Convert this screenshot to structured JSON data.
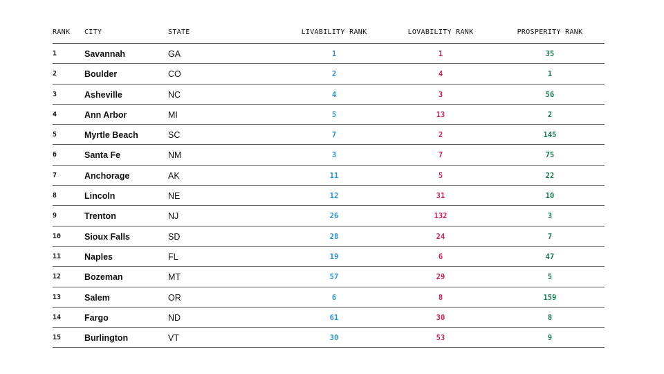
{
  "colors": {
    "livability": "#2a8fc7",
    "lovability": "#c0245a",
    "prosperity": "#1b7a4d"
  },
  "chart_data": {
    "type": "table",
    "columns": [
      "RANK",
      "CITY",
      "STATE",
      "LIVABILITY RANK",
      "LOVABILITY RANK",
      "PROSPERITY RANK"
    ],
    "rows": [
      [
        "1",
        "Savannah",
        "GA",
        "1",
        "1",
        "35"
      ],
      [
        "2",
        "Boulder",
        "CO",
        "2",
        "4",
        "1"
      ],
      [
        "3",
        "Asheville",
        "NC",
        "4",
        "3",
        "56"
      ],
      [
        "4",
        "Ann Arbor",
        "MI",
        "5",
        "13",
        "2"
      ],
      [
        "5",
        "Myrtle Beach",
        "SC",
        "7",
        "2",
        "145"
      ],
      [
        "6",
        "Santa Fe",
        "NM",
        "3",
        "7",
        "75"
      ],
      [
        "7",
        "Anchorage",
        "AK",
        "11",
        "5",
        "22"
      ],
      [
        "8",
        "Lincoln",
        "NE",
        "12",
        "31",
        "10"
      ],
      [
        "9",
        "Trenton",
        "NJ",
        "26",
        "132",
        "3"
      ],
      [
        "10",
        "Sioux Falls",
        "SD",
        "28",
        "24",
        "7"
      ],
      [
        "11",
        "Naples",
        "FL",
        "19",
        "6",
        "47"
      ],
      [
        "12",
        "Bozeman",
        "MT",
        "57",
        "29",
        "5"
      ],
      [
        "13",
        "Salem",
        "OR",
        "6",
        "8",
        "159"
      ],
      [
        "14",
        "Fargo",
        "ND",
        "61",
        "30",
        "8"
      ],
      [
        "15",
        "Burlington",
        "VT",
        "30",
        "53",
        "9"
      ]
    ]
  }
}
